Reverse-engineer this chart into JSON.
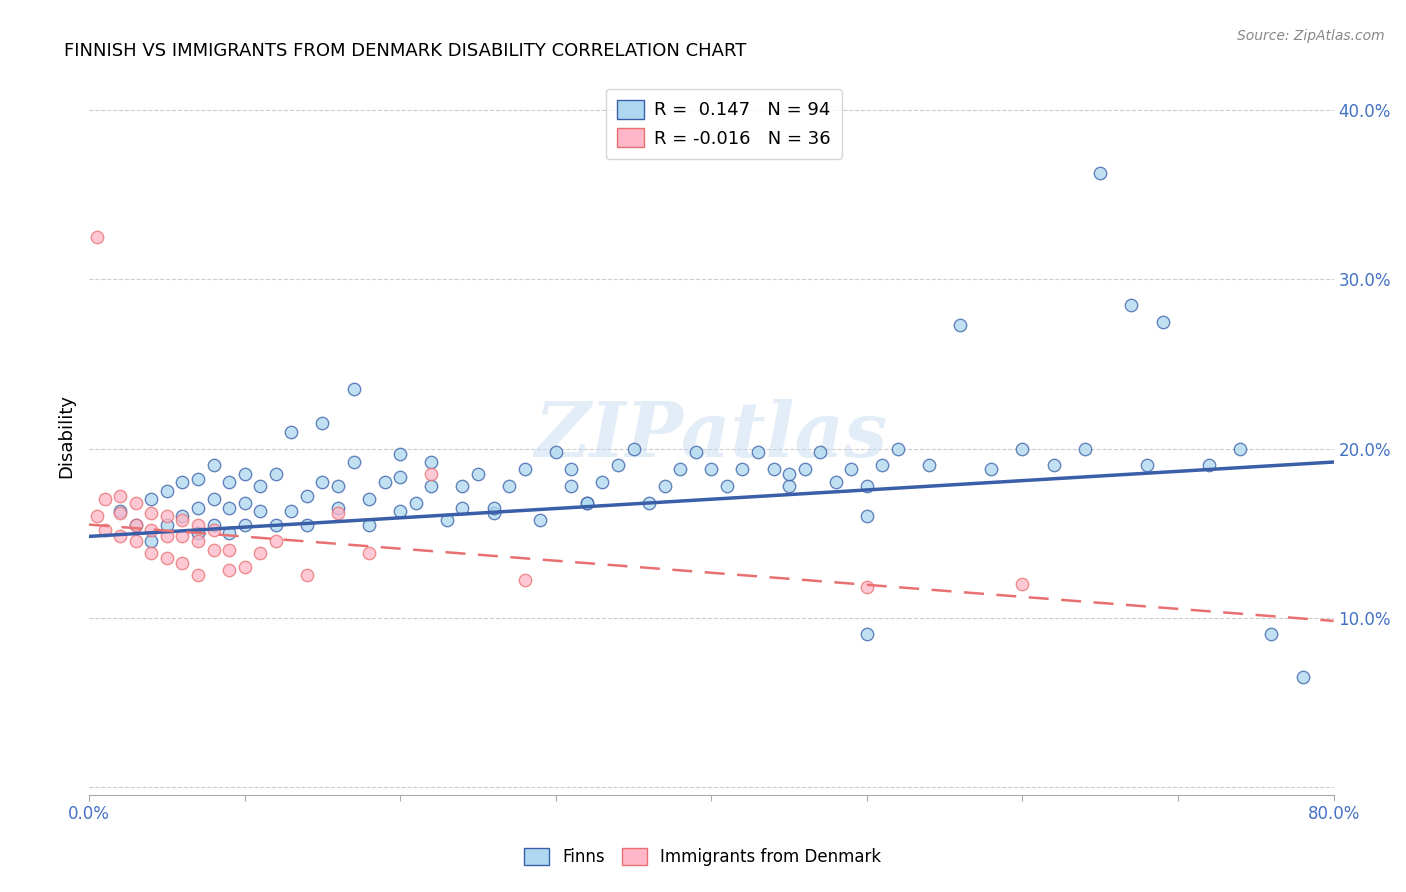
{
  "title": "FINNISH VS IMMIGRANTS FROM DENMARK DISABILITY CORRELATION CHART",
  "source": "Source: ZipAtlas.com",
  "ylabel": "Disability",
  "xlim": [
    0.0,
    0.8
  ],
  "ylim": [
    -0.005,
    0.42
  ],
  "R_finns": 0.147,
  "N_finns": 94,
  "R_denmark": -0.016,
  "N_denmark": 36,
  "color_finns": "#ADD8F0",
  "color_denmark": "#FFB6C8",
  "color_finns_line": "#3A5FA8",
  "color_denmark_line": "#E87070",
  "watermark": "ZIPatlas",
  "finns_trend": [
    0.148,
    0.192
  ],
  "denmark_trend": [
    0.155,
    0.098
  ],
  "finns_x": [
    0.02,
    0.03,
    0.04,
    0.04,
    0.05,
    0.05,
    0.06,
    0.06,
    0.07,
    0.07,
    0.07,
    0.08,
    0.08,
    0.08,
    0.09,
    0.09,
    0.09,
    0.1,
    0.1,
    0.1,
    0.11,
    0.11,
    0.12,
    0.12,
    0.13,
    0.13,
    0.14,
    0.14,
    0.15,
    0.15,
    0.16,
    0.16,
    0.17,
    0.17,
    0.18,
    0.18,
    0.19,
    0.2,
    0.2,
    0.21,
    0.22,
    0.22,
    0.23,
    0.24,
    0.24,
    0.25,
    0.26,
    0.27,
    0.28,
    0.29,
    0.3,
    0.31,
    0.31,
    0.32,
    0.33,
    0.34,
    0.35,
    0.36,
    0.37,
    0.38,
    0.39,
    0.4,
    0.41,
    0.42,
    0.43,
    0.44,
    0.45,
    0.46,
    0.47,
    0.48,
    0.49,
    0.5,
    0.51,
    0.52,
    0.54,
    0.56,
    0.58,
    0.6,
    0.62,
    0.64,
    0.65,
    0.67,
    0.69,
    0.72,
    0.74,
    0.76,
    0.78,
    0.5,
    0.2,
    0.26,
    0.32,
    0.45,
    0.68,
    0.5
  ],
  "finns_y": [
    0.163,
    0.155,
    0.145,
    0.17,
    0.155,
    0.175,
    0.16,
    0.18,
    0.15,
    0.165,
    0.182,
    0.155,
    0.17,
    0.19,
    0.15,
    0.165,
    0.18,
    0.155,
    0.168,
    0.185,
    0.163,
    0.178,
    0.155,
    0.185,
    0.163,
    0.21,
    0.155,
    0.172,
    0.18,
    0.215,
    0.165,
    0.178,
    0.192,
    0.235,
    0.17,
    0.155,
    0.18,
    0.183,
    0.197,
    0.168,
    0.178,
    0.192,
    0.158,
    0.178,
    0.165,
    0.185,
    0.162,
    0.178,
    0.188,
    0.158,
    0.198,
    0.178,
    0.188,
    0.168,
    0.18,
    0.19,
    0.2,
    0.168,
    0.178,
    0.188,
    0.198,
    0.188,
    0.178,
    0.188,
    0.198,
    0.188,
    0.178,
    0.188,
    0.198,
    0.18,
    0.188,
    0.178,
    0.19,
    0.2,
    0.19,
    0.273,
    0.188,
    0.2,
    0.19,
    0.2,
    0.363,
    0.285,
    0.275,
    0.19,
    0.2,
    0.09,
    0.065,
    0.09,
    0.163,
    0.165,
    0.168,
    0.185,
    0.19,
    0.16
  ],
  "denmark_x": [
    0.005,
    0.01,
    0.01,
    0.02,
    0.02,
    0.02,
    0.03,
    0.03,
    0.03,
    0.04,
    0.04,
    0.04,
    0.05,
    0.05,
    0.05,
    0.06,
    0.06,
    0.06,
    0.07,
    0.07,
    0.07,
    0.08,
    0.08,
    0.09,
    0.09,
    0.1,
    0.11,
    0.12,
    0.14,
    0.16,
    0.18,
    0.22,
    0.28,
    0.5,
    0.6,
    0.005
  ],
  "denmark_y": [
    0.16,
    0.152,
    0.17,
    0.162,
    0.172,
    0.148,
    0.155,
    0.168,
    0.145,
    0.152,
    0.162,
    0.138,
    0.148,
    0.16,
    0.135,
    0.148,
    0.158,
    0.132,
    0.145,
    0.155,
    0.125,
    0.14,
    0.152,
    0.14,
    0.128,
    0.13,
    0.138,
    0.145,
    0.125,
    0.162,
    0.138,
    0.185,
    0.122,
    0.118,
    0.12,
    0.325
  ]
}
